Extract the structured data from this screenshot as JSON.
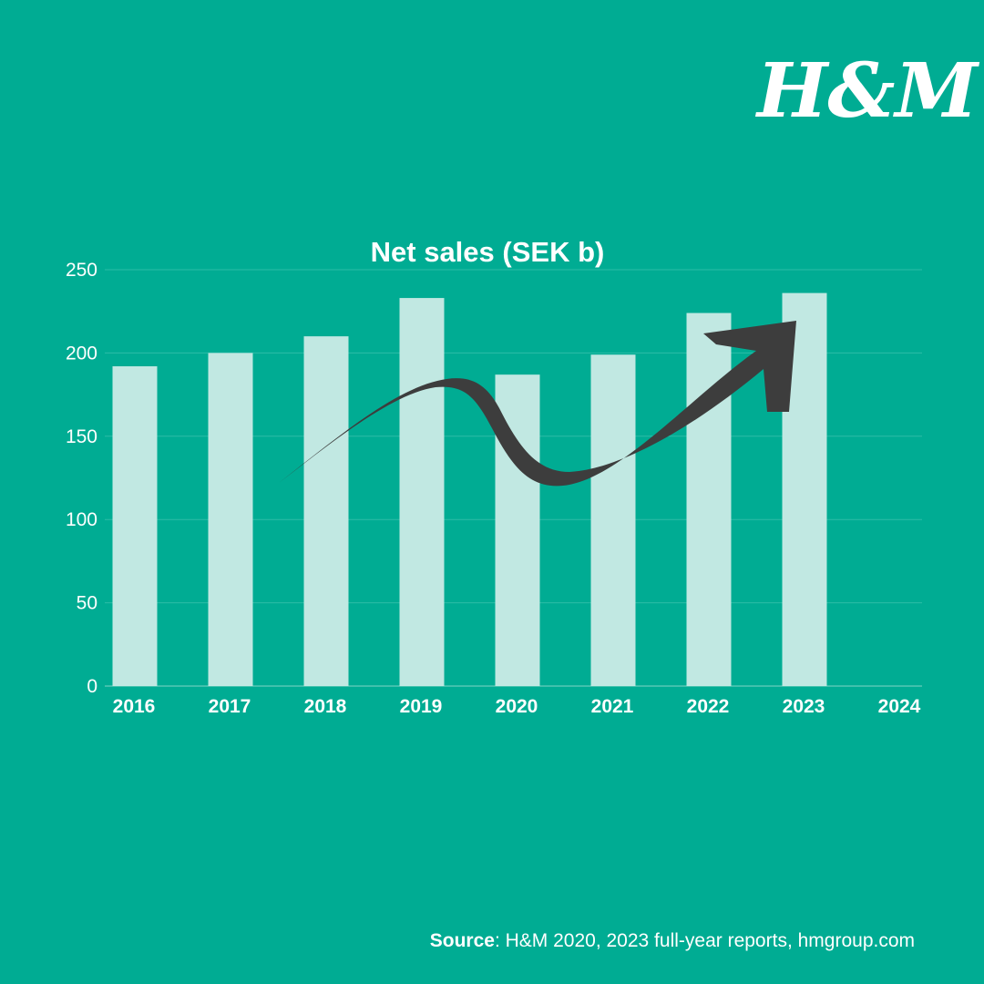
{
  "brand": {
    "logo_text": "H&M"
  },
  "colors": {
    "background": "#00ac93",
    "bar": "#c1e8e2",
    "arrow": "#3d3d3d",
    "text": "#ffffff",
    "grid": "#2dbca7"
  },
  "chart_data": {
    "type": "bar",
    "title": "Net sales (SEK b)",
    "categories": [
      "2016",
      "2017",
      "2018",
      "2019",
      "2020",
      "2021",
      "2022",
      "2023",
      "2024"
    ],
    "values": [
      192,
      200,
      210,
      233,
      187,
      199,
      224,
      236,
      null
    ],
    "ylim": [
      0,
      250
    ],
    "yticks": [
      0,
      50,
      100,
      150,
      200,
      250
    ],
    "grid": true,
    "annotation": "upward trend arrow"
  },
  "source": {
    "label": "Source",
    "text": ": H&M 2020, 2023 full-year reports, hmgroup.com"
  }
}
